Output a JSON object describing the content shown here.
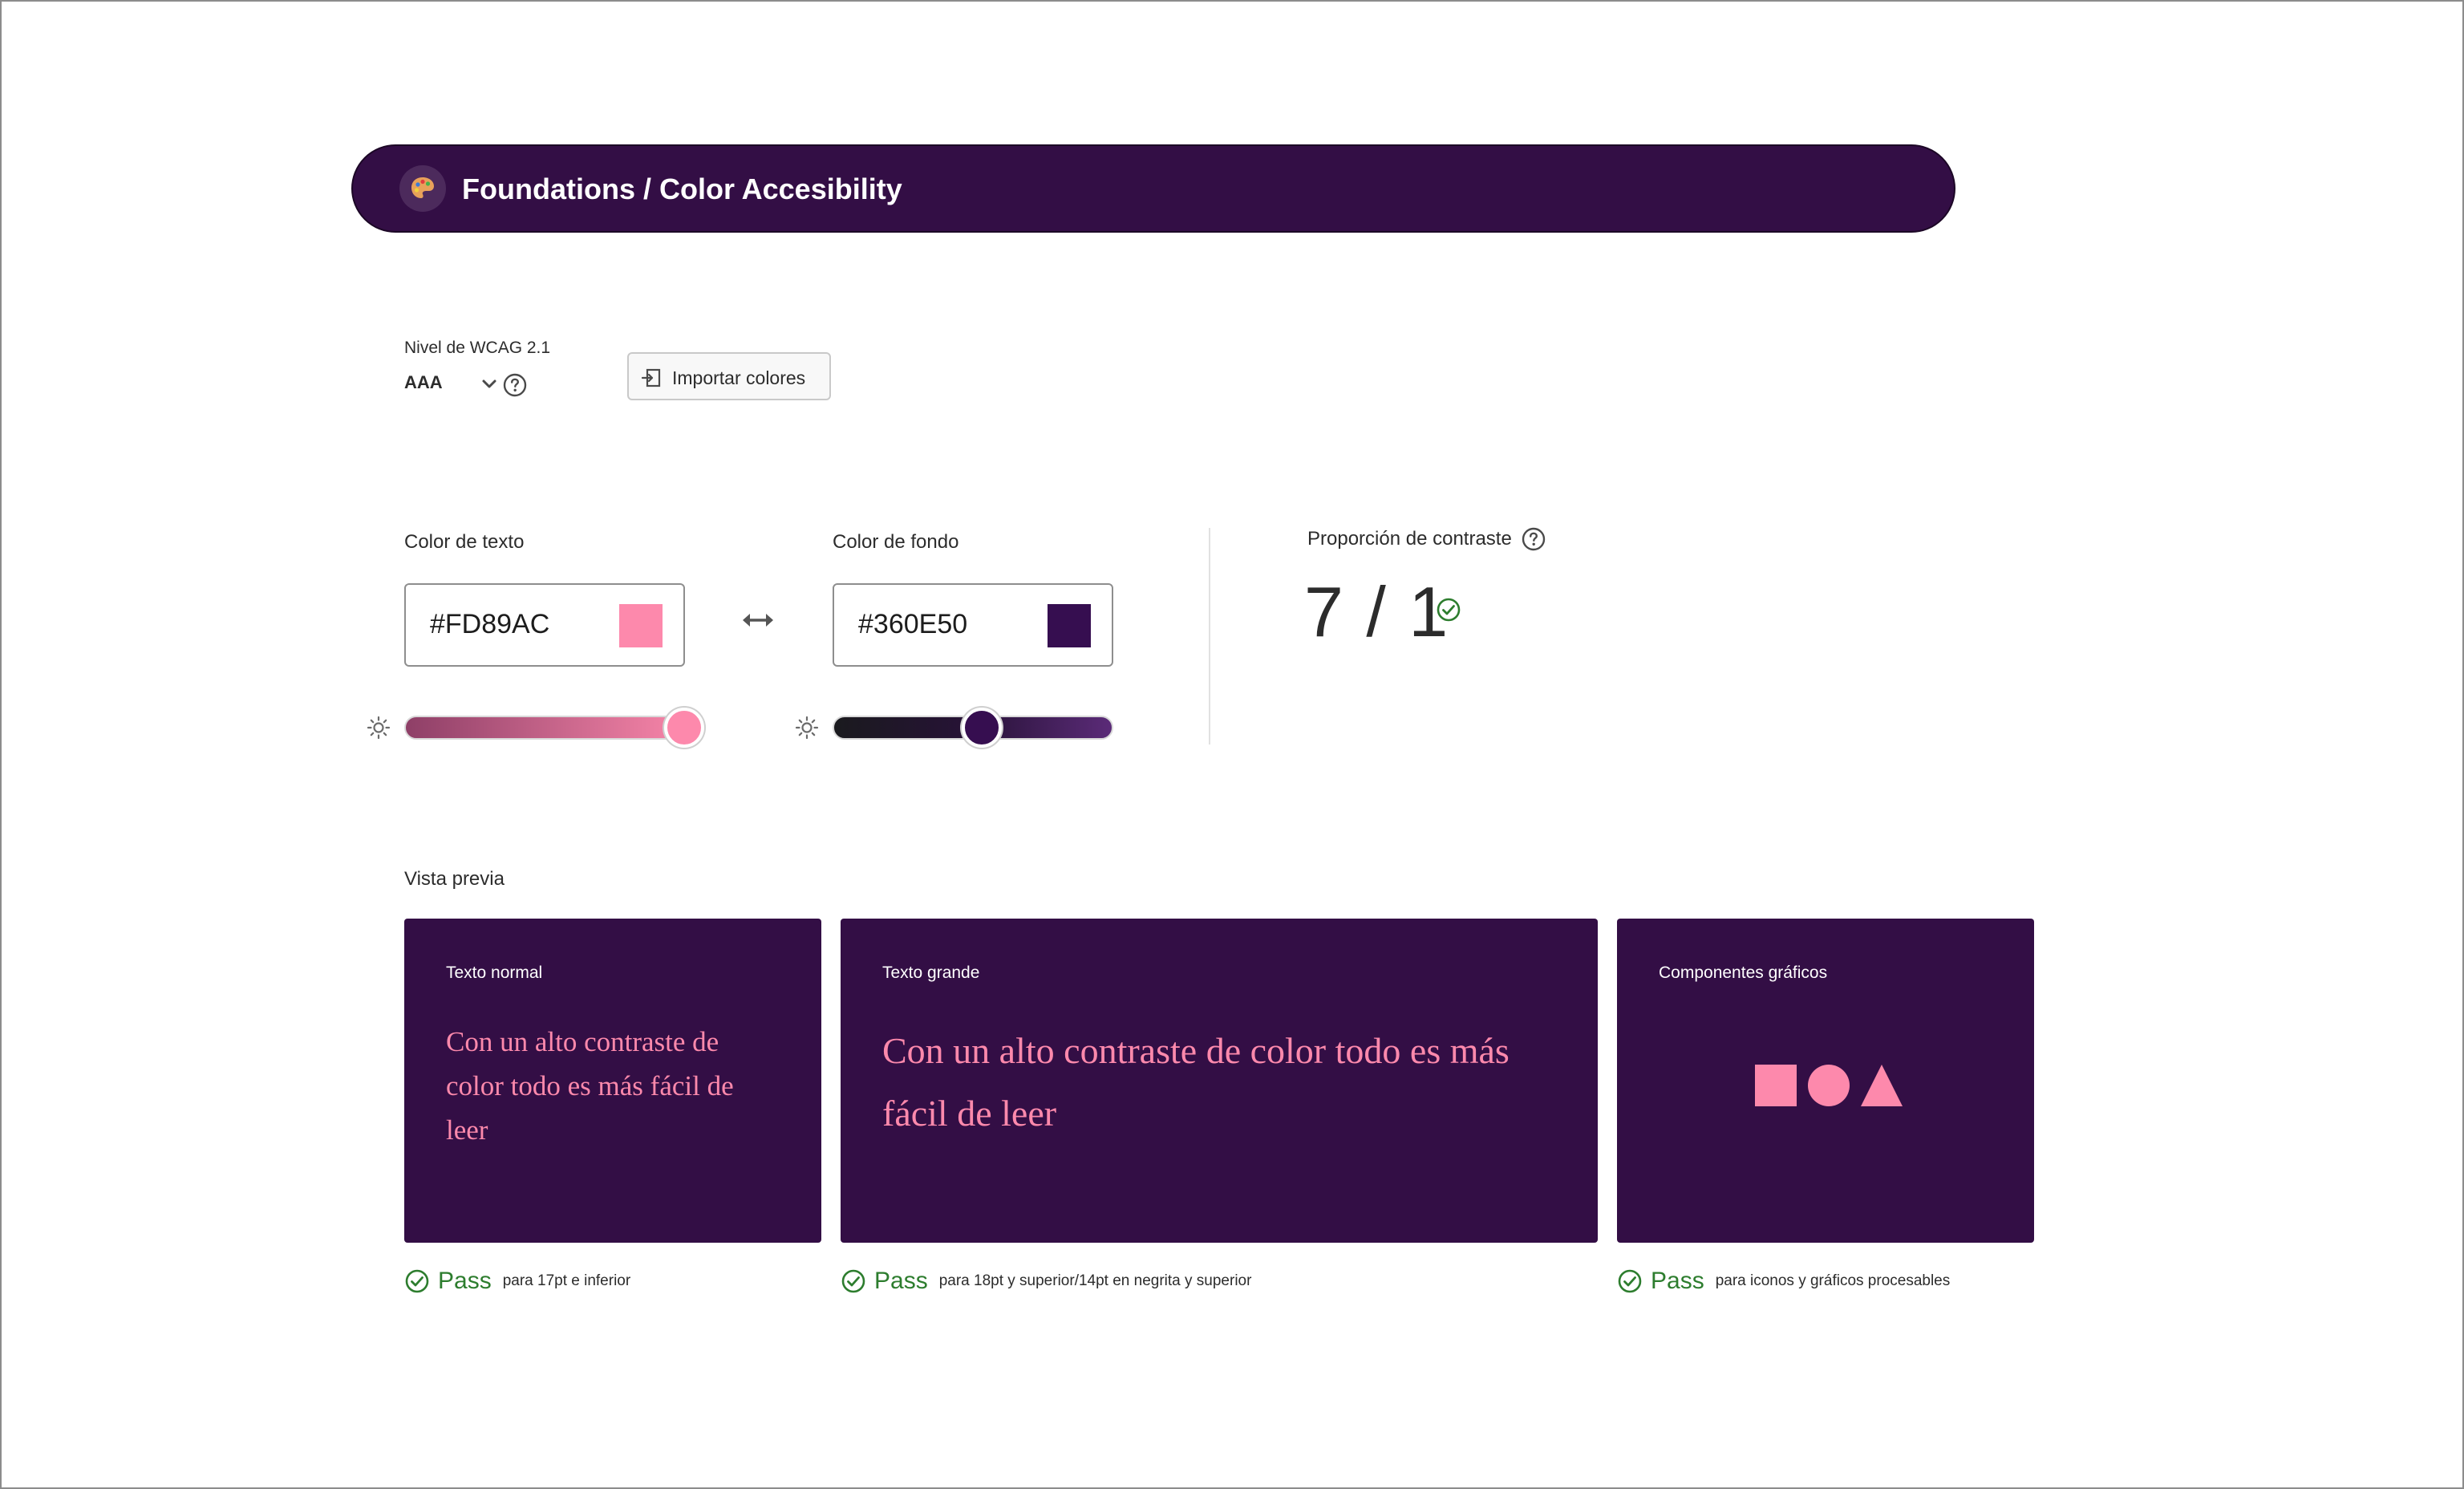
{
  "header": {
    "title": "Foundations / Color Accesibility",
    "icon": "palette-icon"
  },
  "wcag": {
    "label": "Nivel de WCAG 2.1",
    "value": "AAA"
  },
  "import_button": {
    "label": "Importar colores"
  },
  "text_color": {
    "label": "Color de texto",
    "hex": "#FD89AC",
    "brightness": 1.0
  },
  "background_color": {
    "label": "Color de fondo",
    "hex": "#360E50",
    "brightness": 0.53
  },
  "contrast": {
    "label": "Proporción de contraste",
    "ratio": "7 / 1"
  },
  "preview": {
    "label": "Vista previa",
    "cards": [
      {
        "title": "Texto normal",
        "sample": "Con un alto contraste de color todo es más fácil de leer",
        "status": "Pass",
        "description": "para 17pt e inferior"
      },
      {
        "title": "Texto grande",
        "sample": "Con un alto contraste de color todo es más fácil de leer",
        "status": "Pass",
        "description": "para 18pt y superior/14pt en negrita y superior"
      },
      {
        "title": "Componentes gráficos",
        "status": "Pass",
        "description": "para iconos y gráficos procesables"
      }
    ]
  },
  "colors": {
    "header_bg": "#330e45",
    "preview_bg": "#330e45",
    "text_sample": "#fd89ac",
    "pass_green": "#2d7d2e"
  }
}
